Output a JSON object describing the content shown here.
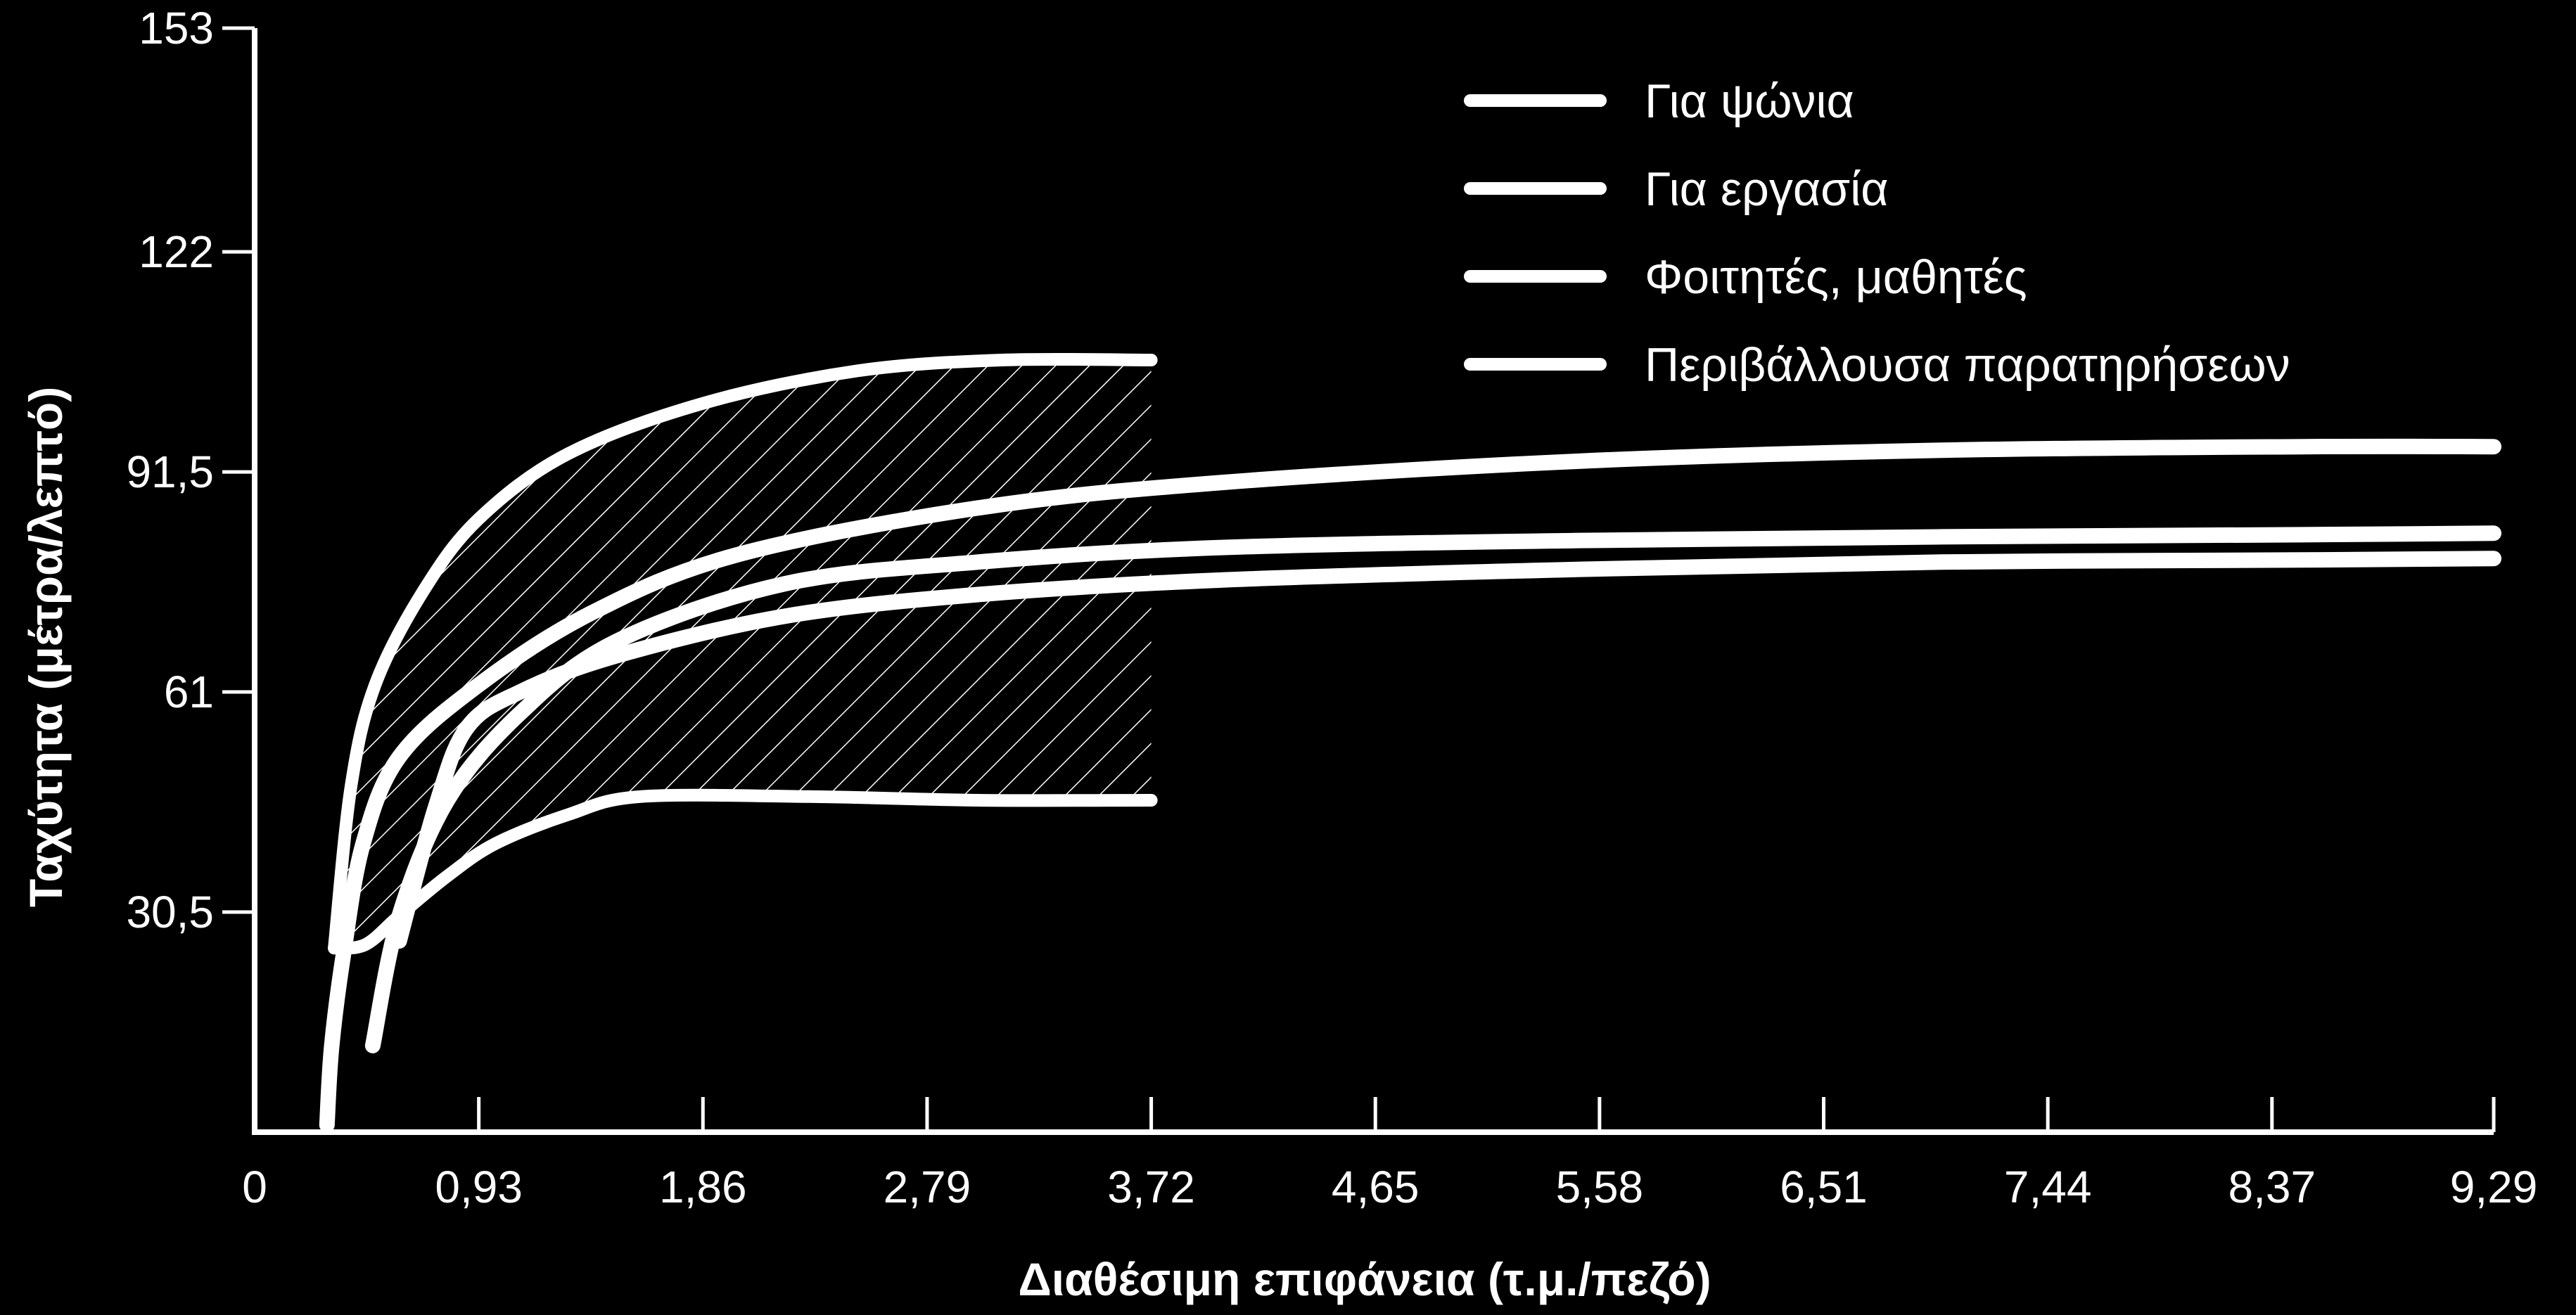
{
  "chart_data": {
    "type": "line",
    "title": "",
    "xlabel": "Διαθέσιμη επιφάνεια (τ.μ./πεζό)",
    "ylabel": "Ταχύτητα (μέτρα/λεπτό)",
    "xlim": [
      0,
      9.29
    ],
    "ylim": [
      0,
      153
    ],
    "x_ticks": [
      "0",
      "0,93",
      "1,86",
      "2,79",
      "3,72",
      "4,65",
      "5,58",
      "6,51",
      "7,44",
      "8,37",
      "9,29"
    ],
    "y_ticks": [
      "30,5",
      "61",
      "91,5",
      "122",
      "153"
    ],
    "grid": false,
    "legend_position": "top-right",
    "line_color": "#ffffff",
    "background": "#000000",
    "hatched_region": {
      "description_label": "Περιβάλλουσα παρατηρήσεων",
      "x_range": [
        0.33,
        3.72
      ],
      "upper": [
        [
          0.33,
          25.5
        ],
        [
          0.4,
          48
        ],
        [
          0.5,
          62
        ],
        [
          0.7,
          75
        ],
        [
          0.93,
          85
        ],
        [
          1.3,
          94
        ],
        [
          1.86,
          101
        ],
        [
          2.5,
          105.5
        ],
        [
          3.1,
          107
        ],
        [
          3.72,
          107
        ]
      ],
      "lower": [
        [
          0.33,
          25.5
        ],
        [
          0.46,
          26
        ],
        [
          0.6,
          30
        ],
        [
          0.8,
          35.5
        ],
        [
          1.0,
          40
        ],
        [
          1.3,
          44
        ],
        [
          1.6,
          46.5
        ],
        [
          2.3,
          46.5
        ],
        [
          3.0,
          46
        ],
        [
          3.72,
          46
        ]
      ]
    },
    "series": [
      {
        "name": "Για ψώνια",
        "points": [
          [
            0.49,
            12
          ],
          [
            0.6,
            30
          ],
          [
            0.8,
            46
          ],
          [
            1.1,
            58
          ],
          [
            1.5,
            68
          ],
          [
            2.2,
            76
          ],
          [
            3.0,
            79
          ],
          [
            4.0,
            81
          ],
          [
            5.5,
            82
          ],
          [
            7.0,
            82.5
          ],
          [
            8.5,
            82.8
          ],
          [
            9.29,
            83
          ]
        ]
      },
      {
        "name": "Για εργασία",
        "points": [
          [
            0.3,
            1
          ],
          [
            0.32,
            12
          ],
          [
            0.37,
            25
          ],
          [
            0.45,
            40
          ],
          [
            0.6,
            52
          ],
          [
            0.93,
            62
          ],
          [
            1.4,
            72
          ],
          [
            2.0,
            80
          ],
          [
            3.0,
            86.5
          ],
          [
            4.0,
            90
          ],
          [
            5.5,
            93
          ],
          [
            7.0,
            94.5
          ],
          [
            8.5,
            95
          ],
          [
            9.29,
            95
          ]
        ]
      },
      {
        "name": "Φοιτητές, μαθητές",
        "points": [
          [
            0.6,
            26.5
          ],
          [
            0.75,
            45
          ],
          [
            0.88,
            56
          ],
          [
            1.1,
            61
          ],
          [
            1.5,
            66
          ],
          [
            2.2,
            71.5
          ],
          [
            3.0,
            74.5
          ],
          [
            4.0,
            76.5
          ],
          [
            5.5,
            78
          ],
          [
            7.0,
            79
          ],
          [
            8.5,
            79.3
          ],
          [
            9.29,
            79.5
          ]
        ]
      }
    ],
    "legend": [
      {
        "label": "Για ψώνια"
      },
      {
        "label": "Για εργασία"
      },
      {
        "label": "Φοιτητές, μαθητές"
      },
      {
        "label": "Περιβάλλουσα παρατηρήσεων"
      }
    ]
  }
}
